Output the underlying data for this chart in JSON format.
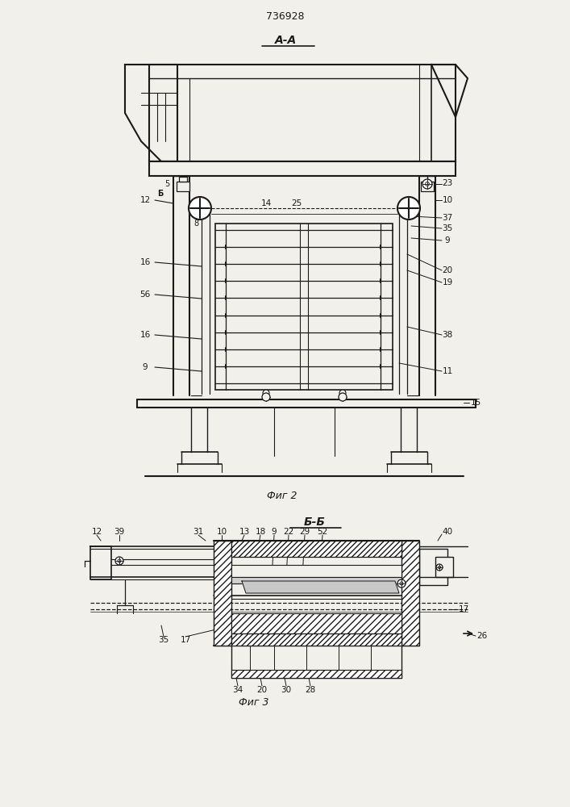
{
  "bg_color": "#f2f0eb",
  "line_color": "#1a1a1a",
  "title_text": "736928",
  "section1_label": "A-A",
  "section2_label": "Б-Б",
  "fig2_label": "Фиг 2",
  "fig3_label": "Фиг 3"
}
